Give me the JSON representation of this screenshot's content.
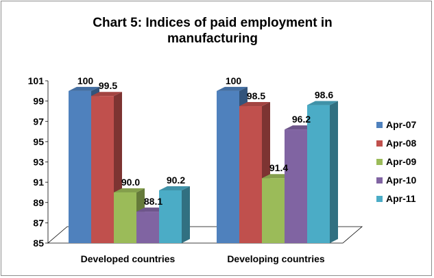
{
  "chart_data": {
    "type": "bar",
    "title_line1": "Chart 5: Indices of paid employment in",
    "title_line2": "manufacturing",
    "categories": [
      "Developed countries",
      "Developing countries"
    ],
    "series": [
      {
        "name": "Apr-07",
        "values": [
          100,
          100
        ],
        "labels": [
          "100",
          "100"
        ],
        "color": "#4f81bd"
      },
      {
        "name": "Apr-08",
        "values": [
          99.5,
          98.5
        ],
        "labels": [
          "99.5",
          "98.5"
        ],
        "color": "#c0504d"
      },
      {
        "name": "Apr-09",
        "values": [
          90.0,
          91.4
        ],
        "labels": [
          "90.0",
          "91.4"
        ],
        "color": "#9bbb59"
      },
      {
        "name": "Apr-10",
        "values": [
          88.1,
          96.2
        ],
        "labels": [
          "88.1",
          "96.2"
        ],
        "color": "#8064a2"
      },
      {
        "name": "Apr-11",
        "values": [
          90.2,
          98.6
        ],
        "labels": [
          "90.2",
          "98.6"
        ],
        "color": "#4bacc6"
      }
    ],
    "yticks": [
      85,
      87,
      89,
      91,
      93,
      95,
      97,
      99,
      101
    ],
    "ylim": [
      85,
      101
    ],
    "xlabel": "",
    "ylabel": "",
    "grid": false,
    "legend": "right",
    "style": "3d-clustered-column"
  }
}
